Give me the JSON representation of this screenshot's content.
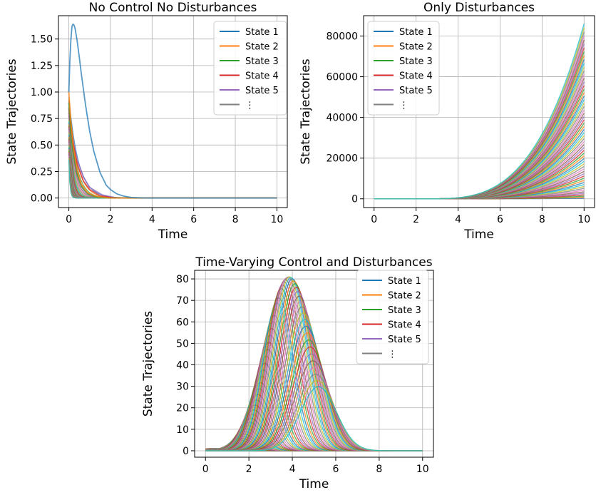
{
  "chart_data": [
    {
      "type": "line",
      "title": "No Control No Disturbances",
      "xlabel": "Time",
      "ylabel": "State Trajectories",
      "xlim": [
        -0.5,
        10.5
      ],
      "ylim": [
        -0.09,
        1.72
      ],
      "xticks": [
        "0",
        "2",
        "4",
        "6",
        "8",
        "10"
      ],
      "yticks": [
        "0.00",
        "0.25",
        "0.50",
        "0.75",
        "1.00",
        "1.25",
        "1.50"
      ],
      "grid": true,
      "legend": [
        "State 1",
        "State 2",
        "State 3",
        "State 4",
        "State 5",
        "⋮"
      ],
      "legend_position": "top-right",
      "series": [
        {
          "name": "State 1",
          "x": [
            0,
            0.05,
            0.1,
            0.15,
            0.2,
            0.25,
            0.3,
            0.4,
            0.5,
            0.6,
            0.8,
            1.0,
            1.2,
            1.5,
            1.8,
            2.0,
            2.3,
            2.6,
            3.0,
            3.5,
            4,
            10
          ],
          "y": [
            1.0,
            1.3,
            1.5,
            1.62,
            1.64,
            1.63,
            1.6,
            1.48,
            1.33,
            1.17,
            0.88,
            0.63,
            0.44,
            0.24,
            0.12,
            0.08,
            0.04,
            0.02,
            0.005,
            0.001,
            0,
            0
          ]
        },
        {
          "name": "State 2",
          "x": [
            0,
            0.1,
            0.2,
            0.4,
            0.6,
            0.9,
            1.3,
            2.0,
            10
          ],
          "y": [
            1.0,
            0.7,
            0.5,
            0.26,
            0.13,
            0.05,
            0.015,
            0,
            0
          ]
        },
        {
          "name": "State 3",
          "x": [
            0,
            0.1,
            0.2,
            0.4,
            0.6,
            0.9,
            1.3,
            2.0,
            10
          ],
          "y": [
            0.9,
            0.62,
            0.44,
            0.22,
            0.11,
            0.04,
            0.01,
            0,
            0
          ]
        },
        {
          "name": "State 4",
          "x": [
            0,
            0.1,
            0.2,
            0.4,
            0.7,
            1.0,
            1.5,
            2.2,
            10
          ],
          "y": [
            0.85,
            0.66,
            0.52,
            0.32,
            0.16,
            0.08,
            0.02,
            0,
            0
          ]
        },
        {
          "name": "State 5",
          "x": [
            0,
            0.1,
            0.2,
            0.4,
            0.7,
            1.0,
            1.6,
            2.3,
            10
          ],
          "y": [
            0.8,
            0.66,
            0.54,
            0.36,
            0.2,
            0.1,
            0.03,
            0,
            0
          ]
        }
      ]
    },
    {
      "type": "line",
      "title": "Only Disturbances",
      "xlabel": "Time",
      "ylabel": "State Trajectories",
      "xlim": [
        -0.5,
        10.5
      ],
      "ylim": [
        -4300,
        90000
      ],
      "xticks": [
        "0",
        "2",
        "4",
        "6",
        "8",
        "10"
      ],
      "yticks": [
        "0",
        "20000",
        "40000",
        "60000",
        "80000"
      ],
      "grid": true,
      "legend": [
        "State 1",
        "State 2",
        "State 3",
        "State 4",
        "State 5",
        "⋮"
      ],
      "legend_position": "top-left",
      "family": {
        "count": 60,
        "final_max": 86000,
        "exponent": 3.2,
        "onset": 2.5
      }
    },
    {
      "type": "line",
      "title": "Time-Varying Control and Disturbances",
      "xlabel": "Time",
      "ylabel": "State Trajectories",
      "xlim": [
        -0.5,
        10.5
      ],
      "ylim": [
        -3,
        84
      ],
      "xticks": [
        "0",
        "2",
        "4",
        "6",
        "8",
        "10"
      ],
      "yticks": [
        "0",
        "10",
        "20",
        "30",
        "40",
        "50",
        "60",
        "70",
        "80"
      ],
      "grid": true,
      "legend": [
        "State 1",
        "State 2",
        "State 3",
        "State 4",
        "State 5",
        "⋮"
      ],
      "legend_position": "top-right",
      "family": {
        "count": 80,
        "peak_max": 81,
        "center_start": 0.2,
        "center_end": 5.2,
        "envelope_center": 3.85,
        "envelope_width": 1.35,
        "min_peak": 1
      }
    }
  ],
  "colors": [
    "#1f77b4",
    "#ff7f0e",
    "#2ca02c",
    "#d62728",
    "#9467bd",
    "#8c564b",
    "#e377c2",
    "#7f7f7f",
    "#bcbd22",
    "#17becf"
  ]
}
